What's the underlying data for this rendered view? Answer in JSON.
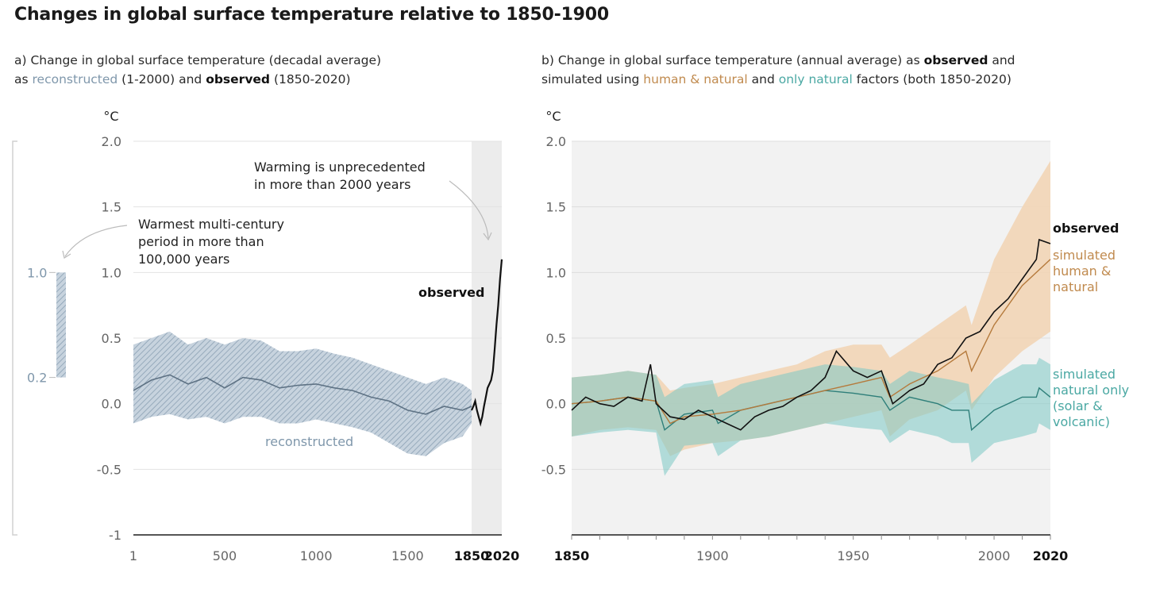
{
  "title": "Changes in global surface temperature relative to 1850-1900",
  "panel_a": {
    "subtitle_l1": "a) Change in global surface temperature (decadal average)",
    "subtitle_l2_pre": "as ",
    "subtitle_l2_recon": "reconstructed",
    "subtitle_l2_mid": " (1-2000) and ",
    "subtitle_l2_obs": "observed",
    "subtitle_l2_post": " (1850-2020)"
  },
  "panel_b": {
    "subtitle_l1_pre": "b) Change in global surface temperature (annual average) as ",
    "subtitle_l1_obs": "observed",
    "subtitle_l1_post": " and",
    "subtitle_l2_pre": "simulated using ",
    "subtitle_l2_human": "human & natural",
    "subtitle_l2_mid": " and ",
    "subtitle_l2_nat": "only natural",
    "subtitle_l2_post": " factors (both 1850-2020)"
  },
  "colors": {
    "reconstructed": "#7f97ab",
    "observed": "#111111",
    "human_natural_line": "#b57a3c",
    "human_natural_band": "#f2d3b3",
    "natural_line": "#2f7f7a",
    "natural_band": "#7cc8c4",
    "highlight": "#ececec"
  },
  "chart_data": [
    {
      "type": "line",
      "panel": "a",
      "ylabel": "°C",
      "ylim": [
        -1,
        2
      ],
      "xlim": [
        1,
        2020
      ],
      "y_ticks": [
        "2.0",
        "1.5",
        "1.0",
        "0.5",
        "0.0",
        "-0.5",
        "-1"
      ],
      "y_tick_values": [
        2.0,
        1.5,
        1.0,
        0.5,
        0.0,
        -0.5,
        -1
      ],
      "x_ticks": [
        "1",
        "500",
        "1000",
        "1500"
      ],
      "x_tick_values": [
        1,
        500,
        1000,
        1500
      ],
      "x_ticks_bold": [
        "1850",
        "2020"
      ],
      "x_ticks_bold_values": [
        1850,
        2020
      ],
      "highlight_range": [
        1850,
        2020
      ],
      "series": [
        {
          "name": "reconstructed",
          "x": [
            1,
            100,
            200,
            300,
            400,
            500,
            600,
            700,
            800,
            900,
            1000,
            1100,
            1200,
            1300,
            1400,
            1500,
            1600,
            1700,
            1800,
            1850
          ],
          "values": [
            0.1,
            0.18,
            0.22,
            0.15,
            0.2,
            0.12,
            0.2,
            0.18,
            0.12,
            0.14,
            0.15,
            0.12,
            0.1,
            0.05,
            0.02,
            -0.05,
            -0.08,
            -0.02,
            -0.05,
            -0.02
          ],
          "upper": [
            0.45,
            0.5,
            0.55,
            0.45,
            0.5,
            0.45,
            0.5,
            0.48,
            0.4,
            0.4,
            0.42,
            0.38,
            0.35,
            0.3,
            0.25,
            0.2,
            0.15,
            0.2,
            0.15,
            0.1
          ],
          "lower": [
            -0.15,
            -0.1,
            -0.08,
            -0.12,
            -0.1,
            -0.15,
            -0.1,
            -0.1,
            -0.15,
            -0.15,
            -0.12,
            -0.15,
            -0.18,
            -0.22,
            -0.3,
            -0.38,
            -0.4,
            -0.3,
            -0.25,
            -0.15
          ]
        },
        {
          "name": "observed",
          "x": [
            1850,
            1860,
            1870,
            1880,
            1890,
            1900,
            1910,
            1920,
            1930,
            1940,
            1950,
            1960,
            1970,
            1980,
            1990,
            2000,
            2010,
            2020
          ],
          "values": [
            -0.05,
            -0.02,
            0.02,
            -0.05,
            -0.1,
            -0.15,
            -0.1,
            -0.02,
            0.05,
            0.12,
            0.15,
            0.18,
            0.25,
            0.42,
            0.6,
            0.75,
            0.95,
            1.1
          ]
        }
      ],
      "annotations": {
        "observed_label": "observed",
        "reconstructed_label": "reconstructed",
        "unprecedented_l1": "Warming is unprecedented",
        "unprecedented_l2": "in more than 2000 years",
        "warmest_l1": "Warmest multi-century",
        "warmest_l2": "period in more than",
        "warmest_l3": "100,000 years"
      },
      "side_bar": {
        "range": [
          0.2,
          1.0
        ],
        "tick_top": "1.0",
        "tick_bottom": "0.2"
      }
    },
    {
      "type": "line",
      "panel": "b",
      "ylabel": "°C",
      "ylim": [
        -1,
        2
      ],
      "xlim": [
        1850,
        2020
      ],
      "y_ticks": [
        "2.0",
        "1.5",
        "1.0",
        "0.5",
        "0.0",
        "-0.5"
      ],
      "y_tick_values": [
        2.0,
        1.5,
        1.0,
        0.5,
        0.0,
        -0.5
      ],
      "x_ticks": [
        "1900",
        "1950",
        "2000"
      ],
      "x_tick_values": [
        1900,
        1950,
        2000
      ],
      "x_ticks_bold": [
        "1850",
        "2020"
      ],
      "x_ticks_bold_values": [
        1850,
        2020
      ],
      "series": [
        {
          "name": "observed",
          "x": [
            1850,
            1855,
            1860,
            1865,
            1870,
            1875,
            1878,
            1880,
            1885,
            1890,
            1895,
            1900,
            1905,
            1910,
            1915,
            1920,
            1925,
            1930,
            1935,
            1940,
            1944,
            1950,
            1955,
            1960,
            1964,
            1970,
            1975,
            1980,
            1985,
            1990,
            1995,
            2000,
            2005,
            2010,
            2015,
            2016,
            2020
          ],
          "values": [
            -0.05,
            0.05,
            0.0,
            -0.02,
            0.05,
            0.02,
            0.3,
            0.0,
            -0.1,
            -0.12,
            -0.05,
            -0.1,
            -0.15,
            -0.2,
            -0.1,
            -0.05,
            -0.02,
            0.05,
            0.1,
            0.2,
            0.4,
            0.25,
            0.2,
            0.25,
            0.0,
            0.1,
            0.15,
            0.3,
            0.35,
            0.5,
            0.55,
            0.7,
            0.8,
            0.95,
            1.1,
            1.25,
            1.22
          ]
        },
        {
          "name": "simulated human & natural",
          "x": [
            1850,
            1860,
            1870,
            1880,
            1885,
            1890,
            1900,
            1910,
            1920,
            1930,
            1940,
            1950,
            1960,
            1963,
            1970,
            1980,
            1990,
            1992,
            2000,
            2010,
            2020
          ],
          "values": [
            0.0,
            0.02,
            0.05,
            0.02,
            -0.15,
            -0.1,
            -0.08,
            -0.05,
            0.0,
            0.05,
            0.1,
            0.15,
            0.2,
            0.05,
            0.15,
            0.25,
            0.4,
            0.25,
            0.6,
            0.9,
            1.1
          ],
          "upper": [
            0.2,
            0.22,
            0.25,
            0.22,
            0.1,
            0.12,
            0.15,
            0.2,
            0.25,
            0.3,
            0.4,
            0.45,
            0.45,
            0.35,
            0.45,
            0.6,
            0.75,
            0.6,
            1.1,
            1.5,
            1.85
          ],
          "lower": [
            -0.25,
            -0.2,
            -0.18,
            -0.2,
            -0.4,
            -0.35,
            -0.3,
            -0.28,
            -0.25,
            -0.2,
            -0.15,
            -0.1,
            -0.05,
            -0.25,
            -0.12,
            -0.05,
            0.1,
            -0.05,
            0.2,
            0.4,
            0.55
          ]
        },
        {
          "name": "simulated natural only (solar & volcanic)",
          "x": [
            1850,
            1860,
            1870,
            1880,
            1883,
            1890,
            1900,
            1902,
            1910,
            1920,
            1930,
            1940,
            1950,
            1960,
            1963,
            1970,
            1980,
            1985,
            1991,
            1992,
            2000,
            2010,
            2015,
            2016,
            2020
          ],
          "values": [
            0.0,
            0.02,
            0.05,
            0.02,
            -0.2,
            -0.08,
            -0.05,
            -0.15,
            -0.05,
            0.0,
            0.05,
            0.1,
            0.08,
            0.05,
            -0.05,
            0.05,
            0.0,
            -0.05,
            -0.05,
            -0.2,
            -0.05,
            0.05,
            0.05,
            0.12,
            0.05
          ],
          "upper": [
            0.2,
            0.22,
            0.25,
            0.22,
            0.05,
            0.15,
            0.18,
            0.05,
            0.15,
            0.2,
            0.25,
            0.3,
            0.28,
            0.25,
            0.15,
            0.25,
            0.2,
            0.18,
            0.15,
            0.0,
            0.18,
            0.3,
            0.3,
            0.35,
            0.3
          ],
          "lower": [
            -0.25,
            -0.22,
            -0.2,
            -0.22,
            -0.55,
            -0.32,
            -0.3,
            -0.4,
            -0.28,
            -0.25,
            -0.2,
            -0.15,
            -0.18,
            -0.2,
            -0.3,
            -0.2,
            -0.25,
            -0.3,
            -0.3,
            -0.45,
            -0.3,
            -0.25,
            -0.22,
            -0.15,
            -0.2
          ]
        }
      ],
      "labels": {
        "observed": "observed",
        "human_l1": "simulated",
        "human_l2": "human &",
        "human_l3": "natural",
        "nat_l1": "simulated",
        "nat_l2": "natural only",
        "nat_l3": "(solar &",
        "nat_l4": "volcanic)"
      }
    }
  ]
}
